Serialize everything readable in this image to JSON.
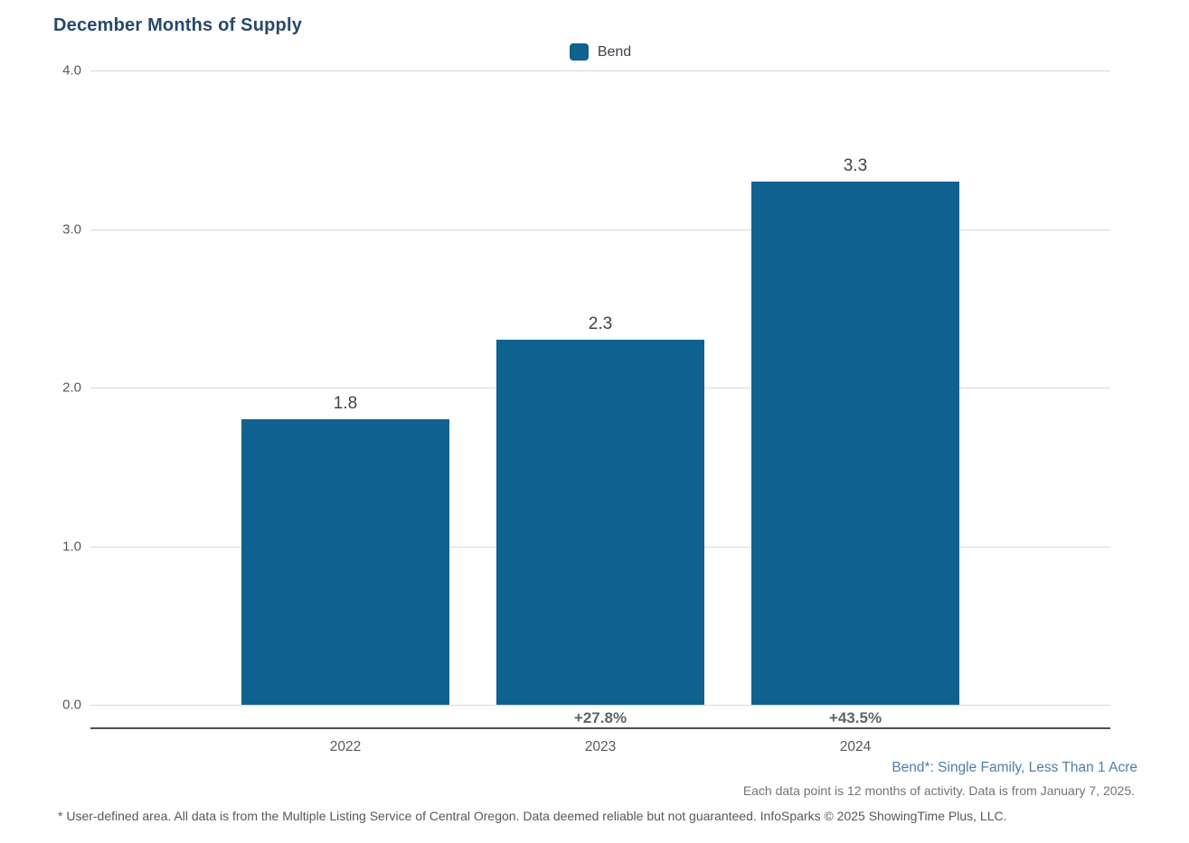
{
  "chart": {
    "title": "December Months of Supply",
    "legend_label": "Bend"
  },
  "chart_data": {
    "type": "bar",
    "title": "December Months of Supply",
    "categories": [
      "2022",
      "2023",
      "2024"
    ],
    "series": [
      {
        "name": "Bend",
        "values": [
          1.8,
          2.3,
          3.3
        ],
        "value_labels": [
          "1.8",
          "2.3",
          "3.3"
        ],
        "pct_change_labels": [
          "",
          "+27.8%",
          "+43.5%"
        ]
      }
    ],
    "xlabel": "",
    "ylabel": "",
    "ylim": [
      0.0,
      4.0
    ],
    "ytick_labels": [
      "0.0",
      "1.0",
      "2.0",
      "3.0",
      "4.0"
    ],
    "grid": "horizontal",
    "legend_position": "top-center",
    "colors": {
      "bar": "#0f6190",
      "title": "#27496b",
      "gridline": "#d9d9d9",
      "axis_line": "#4b4f54",
      "footnote_blue": "#4d7dac"
    }
  },
  "footnotes": {
    "series_definition": "Bend*: Single Family, Less Than 1 Acre",
    "data_period": "Each data point is 12 months of activity. Data is from January 7, 2025.",
    "disclaimer": "* User-defined area. All data is from the Multiple Listing Service of Central Oregon. Data deemed reliable but not guaranteed. InfoSparks © 2025 ShowingTime Plus, LLC."
  }
}
